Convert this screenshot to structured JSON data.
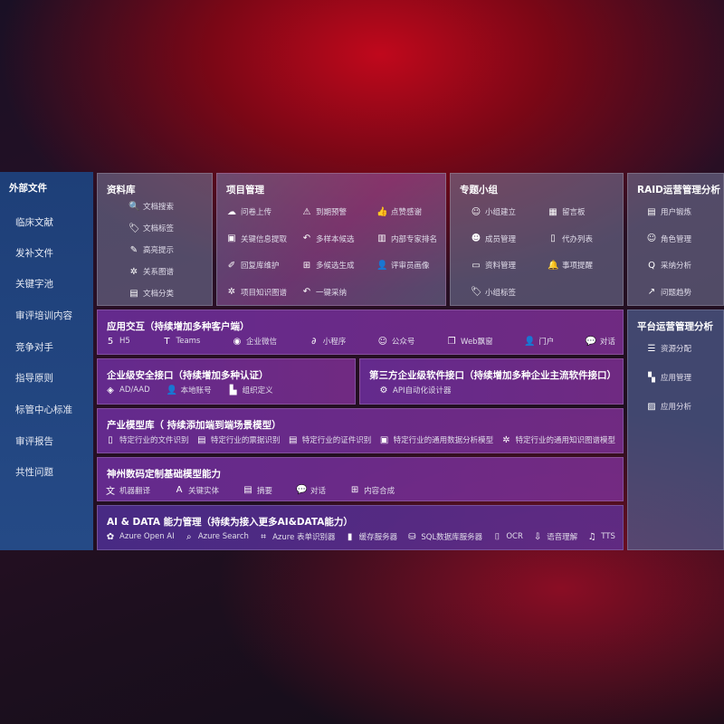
{
  "sidebar": {
    "title": "外部文件",
    "items": [
      "临床文献",
      "发补文件",
      "关键字池",
      "审评培训内容",
      "竞争对手",
      "指导原则",
      "标管中心标准",
      "审评报告",
      "共性问题"
    ]
  },
  "library": {
    "title": "资料库",
    "items": [
      {
        "icon": "doc-search-icon",
        "label": "文档搜索"
      },
      {
        "icon": "tag-icon",
        "label": "文档标签"
      },
      {
        "icon": "pen-icon",
        "label": "高亮提示"
      },
      {
        "icon": "graph-icon",
        "label": "关系图谱"
      },
      {
        "icon": "doc-classify-icon",
        "label": "文档分类"
      }
    ]
  },
  "project": {
    "title": "项目管理",
    "items": [
      {
        "icon": "cloud-upload-icon",
        "label": "问卷上传"
      },
      {
        "icon": "alarm-icon",
        "label": "到期预警"
      },
      {
        "icon": "thumbs-up-icon",
        "label": "点赞感谢"
      },
      {
        "icon": "extract-icon",
        "label": "关键信息提取"
      },
      {
        "icon": "reply-icon",
        "label": "多样本候选"
      },
      {
        "icon": "ranking-icon",
        "label": "内部专家排名"
      },
      {
        "icon": "edit-icon",
        "label": "回复库维护"
      },
      {
        "icon": "puzzle-icon",
        "label": "多候选生成"
      },
      {
        "icon": "user-icon",
        "label": "评审员画像"
      },
      {
        "icon": "graph-icon",
        "label": "项目知识图谱"
      },
      {
        "icon": "reply-icon",
        "label": "一键采纳"
      }
    ]
  },
  "group": {
    "title": "专题小组",
    "items": [
      {
        "icon": "group-icon",
        "label": "小组建立"
      },
      {
        "icon": "bbs-icon",
        "label": "留言板"
      },
      {
        "icon": "member-icon",
        "label": "成员管理"
      },
      {
        "icon": "clipboard-icon",
        "label": "代办列表"
      },
      {
        "icon": "folder-icon",
        "label": "资料管理"
      },
      {
        "icon": "bell-icon",
        "label": "事项提醒"
      },
      {
        "icon": "tag-icon",
        "label": "小组标签"
      }
    ]
  },
  "raid": {
    "title": "RAID运营管理分析",
    "items": [
      {
        "icon": "id-card-icon",
        "label": "用户锻炼"
      },
      {
        "icon": "users-icon",
        "label": "角色管理"
      },
      {
        "icon": "qa-icon",
        "label": "采纳分析"
      },
      {
        "icon": "trend-icon",
        "label": "问题趋势"
      }
    ]
  },
  "platform": {
    "title": "平台运营管理分析",
    "items": [
      {
        "icon": "list-icon",
        "label": "资源分配"
      },
      {
        "icon": "apps-icon",
        "label": "应用管理"
      },
      {
        "icon": "chart-icon",
        "label": "应用分析"
      }
    ]
  },
  "interaction": {
    "title": "应用交互（持续增加多种客户端）",
    "items": [
      {
        "icon": "html5-icon",
        "label": "H5"
      },
      {
        "icon": "teams-icon",
        "label": "Teams"
      },
      {
        "icon": "wechat-work-icon",
        "label": "企业微信"
      },
      {
        "icon": "mini-program-icon",
        "label": "小程序"
      },
      {
        "icon": "official-account-icon",
        "label": "公众号"
      },
      {
        "icon": "window-icon",
        "label": "Web飘窗"
      },
      {
        "icon": "portal-icon",
        "label": "门户"
      },
      {
        "icon": "chat-icon",
        "label": "对话"
      }
    ]
  },
  "security": {
    "title": "企业级安全接口（持续增加多种认证）",
    "items": [
      {
        "icon": "aad-icon",
        "label": "AD/AAD"
      },
      {
        "icon": "account-icon",
        "label": "本地账号"
      },
      {
        "icon": "org-icon",
        "label": "组织定义"
      }
    ]
  },
  "thirdparty": {
    "title": "第三方企业级软件接口（持续增加多种企业主流软件接口）",
    "items": [
      {
        "icon": "gear-icon",
        "label": "API自动化设计器"
      }
    ]
  },
  "models": {
    "title": "产业模型库（ 持续添加端到端场景模型）",
    "items": [
      {
        "icon": "file-icon",
        "label": "特定行业的文件识别"
      },
      {
        "icon": "receipt-icon",
        "label": "特定行业的票据识别"
      },
      {
        "icon": "id-card-icon",
        "label": "特定行业的证件识别"
      },
      {
        "icon": "data-icon",
        "label": "特定行业的通用数据分析模型"
      },
      {
        "icon": "graph-icon",
        "label": "特定行业的通用知识图谱模型"
      }
    ]
  },
  "base": {
    "title": "神州数码定制基础模型能力",
    "items": [
      {
        "icon": "translate-icon",
        "label": "机器翻译"
      },
      {
        "icon": "entity-icon",
        "label": "关键实体"
      },
      {
        "icon": "summary-icon",
        "label": "摘要"
      },
      {
        "icon": "chat-icon",
        "label": "对话"
      },
      {
        "icon": "puzzle-icon",
        "label": "内容合成"
      }
    ]
  },
  "aidata": {
    "title": "AI & DATA 能力管理（持续为接入更多AI&DATA能力）",
    "items": [
      {
        "icon": "openai-icon",
        "label": "Azure Open AI"
      },
      {
        "icon": "search-icon",
        "label": "Azure Search"
      },
      {
        "icon": "form-icon",
        "label": "Azure 表单识别器"
      },
      {
        "icon": "cache-icon",
        "label": "缓存服务器"
      },
      {
        "icon": "database-icon",
        "label": "SQL数据库服务器"
      },
      {
        "icon": "ocr-icon",
        "label": "OCR"
      },
      {
        "icon": "speech-icon",
        "label": "语音理解"
      },
      {
        "icon": "tts-icon",
        "label": "TTS"
      }
    ]
  }
}
